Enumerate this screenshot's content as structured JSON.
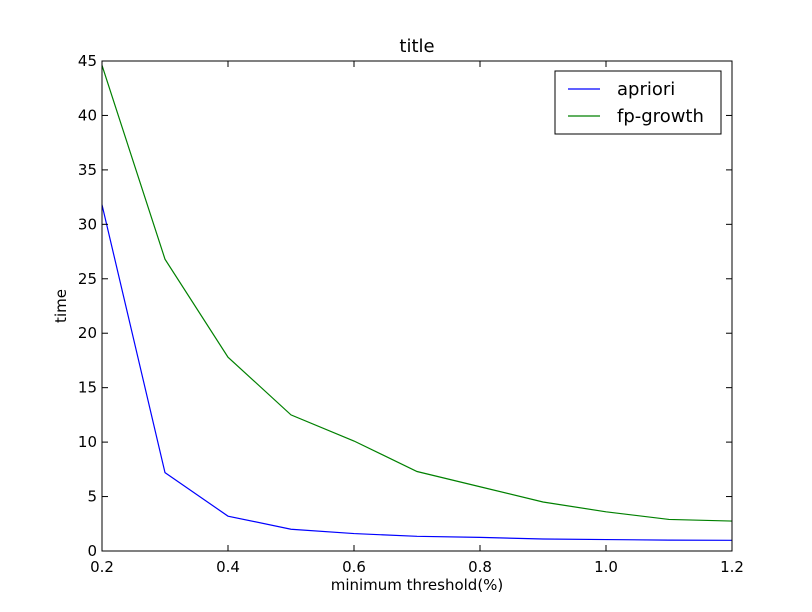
{
  "chart_data": {
    "type": "line",
    "title": "title",
    "xlabel": "minimum threshold(%)",
    "ylabel": "time",
    "xlim": [
      0.2,
      1.2
    ],
    "ylim": [
      0,
      45
    ],
    "xticks": [
      0.2,
      0.4,
      0.6,
      0.8,
      1.0,
      1.2
    ],
    "xtick_labels": [
      "0.2",
      "0.4",
      "0.6",
      "0.8",
      "1.0",
      "1.2"
    ],
    "yticks": [
      0,
      5,
      10,
      15,
      20,
      25,
      30,
      35,
      40,
      45
    ],
    "ytick_labels": [
      "0",
      "5",
      "10",
      "15",
      "20",
      "25",
      "30",
      "35",
      "40",
      "45"
    ],
    "grid": false,
    "legend_position": "top-right",
    "x": [
      0.2,
      0.3,
      0.4,
      0.5,
      0.6,
      0.7,
      0.8,
      0.9,
      1.0,
      1.1,
      1.2
    ],
    "series": [
      {
        "name": "apriori",
        "color": "#0000ff",
        "values": [
          31.8,
          7.2,
          3.2,
          2.0,
          1.6,
          1.35,
          1.25,
          1.1,
          1.05,
          1.0,
          0.98
        ]
      },
      {
        "name": "fp-growth",
        "color": "#008000",
        "values": [
          44.6,
          26.8,
          17.8,
          12.5,
          10.1,
          7.3,
          5.9,
          4.5,
          3.6,
          2.9,
          2.75
        ]
      }
    ]
  }
}
